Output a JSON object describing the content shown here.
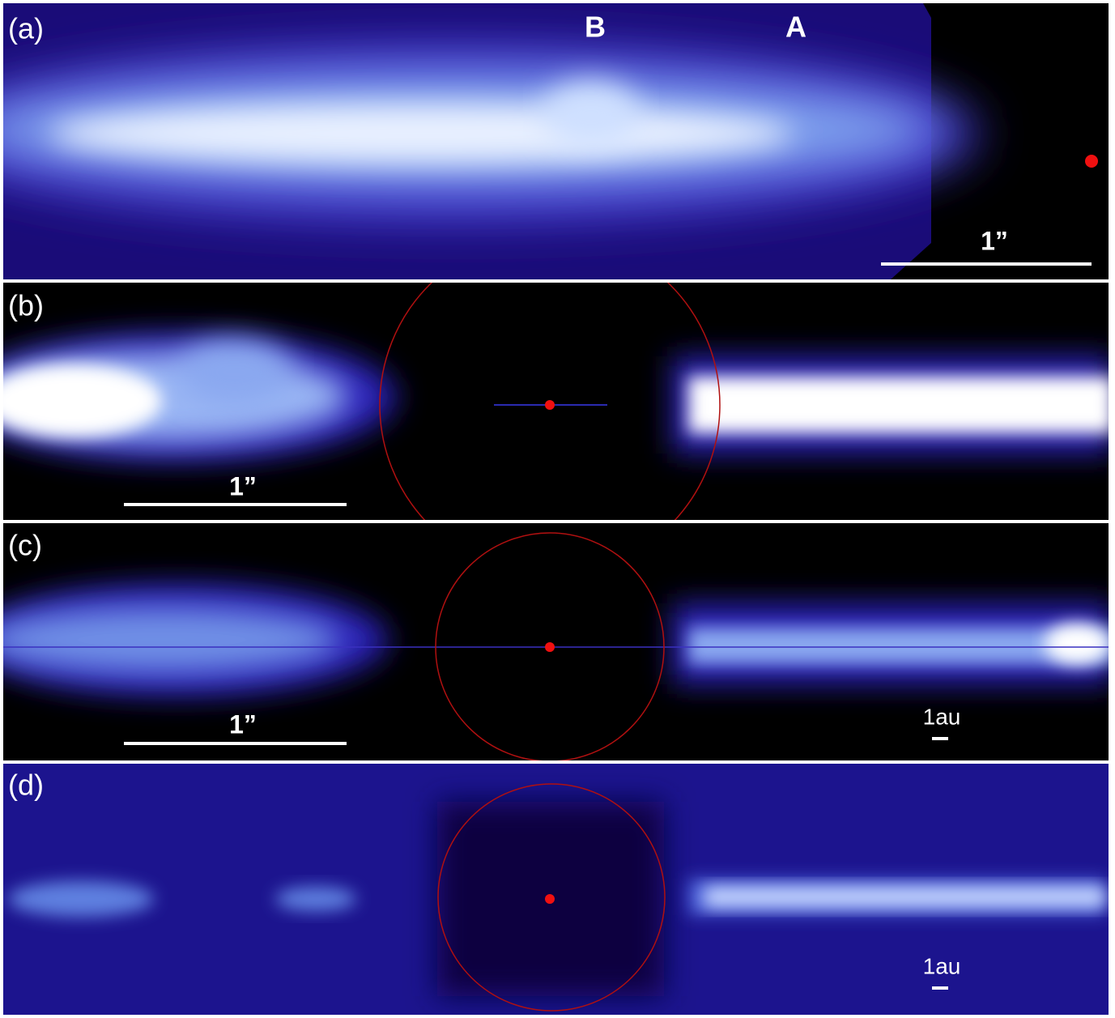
{
  "panels": [
    {
      "label": "(a)",
      "markers": [
        "B",
        "A"
      ],
      "scale_bar": "1”"
    },
    {
      "label": "(b)",
      "scale_bar": "1”"
    },
    {
      "label": "(c)",
      "scale_bar": "1”",
      "au_bar": "1au"
    },
    {
      "label": "(d)",
      "au_bar": "1au"
    }
  ]
}
